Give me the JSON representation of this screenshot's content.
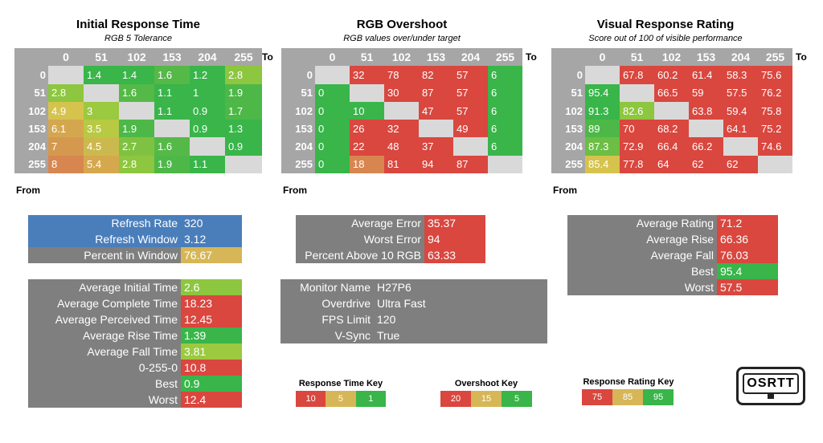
{
  "chart_data": [
    {
      "type": "table",
      "title": "Initial Response Time",
      "subtitle": "RGB 5 Tolerance",
      "col_axis_label": "To",
      "row_axis_label": "From",
      "columns": [
        "0",
        "51",
        "102",
        "153",
        "204",
        "255"
      ],
      "rows": [
        "0",
        "51",
        "102",
        "153",
        "204",
        "255"
      ],
      "values": [
        [
          "",
          "1.4",
          "1.4",
          "1.6",
          "1.2",
          "2.8"
        ],
        [
          "2.8",
          "",
          "1.6",
          "1.1",
          "1",
          "1.9"
        ],
        [
          "4.9",
          "3",
          "",
          "1.1",
          "0.9",
          "1.7"
        ],
        [
          "6.1",
          "3.5",
          "1.9",
          "",
          "0.9",
          "1.3"
        ],
        [
          "7",
          "4.5",
          "2.7",
          "1.6",
          "",
          "0.9"
        ],
        [
          "8",
          "5.4",
          "2.8",
          "1.9",
          "1.1",
          ""
        ]
      ],
      "colors": [
        [
          "",
          "#39b54a",
          "#39b54a",
          "#55b947",
          "#39b54a",
          "#8dc63f"
        ],
        [
          "#8dc63f",
          "",
          "#55b947",
          "#39b54a",
          "#39b54a",
          "#4db848"
        ],
        [
          "#d6c34d",
          "#9bc93f",
          "",
          "#39b54a",
          "#39b54a",
          "#4db848"
        ],
        [
          "#d4a74f",
          "#b8c944",
          "#4db848",
          "",
          "#39b54a",
          "#39b54a"
        ],
        [
          "#d4994f",
          "#ccb94e",
          "#7fc241",
          "#55b947",
          "",
          "#39b54a"
        ],
        [
          "#d88650",
          "#d6a84e",
          "#8dc63f",
          "#4db848",
          "#39b54a",
          ""
        ]
      ]
    },
    {
      "type": "table",
      "title": "RGB Overshoot",
      "subtitle": "RGB values over/under target",
      "col_axis_label": "To",
      "row_axis_label": "From",
      "columns": [
        "0",
        "51",
        "102",
        "153",
        "204",
        "255"
      ],
      "rows": [
        "0",
        "51",
        "102",
        "153",
        "204",
        "255"
      ],
      "values": [
        [
          "",
          "32",
          "78",
          "82",
          "57",
          "6"
        ],
        [
          "0",
          "",
          "30",
          "87",
          "57",
          "6"
        ],
        [
          "0",
          "10",
          "",
          "47",
          "57",
          "6"
        ],
        [
          "0",
          "26",
          "32",
          "",
          "49",
          "6"
        ],
        [
          "0",
          "22",
          "48",
          "37",
          "",
          "6"
        ],
        [
          "0",
          "18",
          "81",
          "94",
          "87",
          ""
        ]
      ],
      "colors": [
        [
          "",
          "#d9473f",
          "#d9473f",
          "#d9473f",
          "#d9473f",
          "#39b54a"
        ],
        [
          "#39b54a",
          "",
          "#d9473f",
          "#d9473f",
          "#d9473f",
          "#39b54a"
        ],
        [
          "#39b54a",
          "#39b54a",
          "",
          "#d9473f",
          "#d9473f",
          "#39b54a"
        ],
        [
          "#39b54a",
          "#d9473f",
          "#d9473f",
          "",
          "#d9473f",
          "#39b54a"
        ],
        [
          "#39b54a",
          "#d9473f",
          "#d9473f",
          "#d9473f",
          "",
          "#39b54a"
        ],
        [
          "#39b54a",
          "#d88650",
          "#d9473f",
          "#d9473f",
          "#d9473f",
          ""
        ]
      ]
    },
    {
      "type": "table",
      "title": "Visual Response Rating",
      "subtitle": "Score out of 100 of visible performance",
      "col_axis_label": "To",
      "row_axis_label": "From",
      "columns": [
        "0",
        "51",
        "102",
        "153",
        "204",
        "255"
      ],
      "rows": [
        "0",
        "51",
        "102",
        "153",
        "204",
        "255"
      ],
      "values": [
        [
          "",
          "67.8",
          "60.2",
          "61.4",
          "58.3",
          "75.6"
        ],
        [
          "95.4",
          "",
          "66.5",
          "59",
          "57.5",
          "76.2"
        ],
        [
          "91.3",
          "82.6",
          "",
          "63.8",
          "59.4",
          "75.8"
        ],
        [
          "89",
          "70",
          "68.2",
          "",
          "64.1",
          "75.2"
        ],
        [
          "87.3",
          "72.9",
          "66.4",
          "66.2",
          "",
          "74.6"
        ],
        [
          "85.4",
          "77.8",
          "64",
          "62",
          "62",
          ""
        ]
      ],
      "colors": [
        [
          "",
          "#d9473f",
          "#d9473f",
          "#d9473f",
          "#d9473f",
          "#d9473f"
        ],
        [
          "#39b54a",
          "",
          "#d9473f",
          "#d9473f",
          "#d9473f",
          "#d9473f"
        ],
        [
          "#39b54a",
          "#8dc63f",
          "",
          "#d9473f",
          "#d9473f",
          "#d9473f"
        ],
        [
          "#4db848",
          "#d9473f",
          "#d9473f",
          "",
          "#d9473f",
          "#d9473f"
        ],
        [
          "#6cbe45",
          "#d9473f",
          "#d9473f",
          "#d9473f",
          "",
          "#d9473f"
        ],
        [
          "#d6c34d",
          "#d9473f",
          "#d9473f",
          "#d9473f",
          "#d9473f",
          ""
        ]
      ]
    }
  ],
  "colors": {
    "header_grey": "#a6a6a6",
    "diag_grey": "#d9d9d9",
    "panel_grey": "#7f7f7f",
    "panel_blue": "#4a7ebb",
    "green": "#39b54a",
    "yellow": "#d6b656",
    "red": "#d9473f",
    "lightgreen": "#8dc63f"
  },
  "refresh": [
    {
      "label": "Refresh Rate",
      "value": "320",
      "bg": "#4a7ebb",
      "vbg": "#4a7ebb"
    },
    {
      "label": "Refresh Window",
      "value": "3.12",
      "bg": "#4a7ebb",
      "vbg": "#4a7ebb"
    },
    {
      "label": "Percent in Window",
      "value": "76.67",
      "bg": "#7f7f7f",
      "vbg": "#d6b656"
    }
  ],
  "response_stats": [
    {
      "label": "Average Initial Time",
      "value": "2.6",
      "vbg": "#8dc63f"
    },
    {
      "label": "Average Complete Time",
      "value": "18.23",
      "vbg": "#d9473f"
    },
    {
      "label": "Average Perceived Time",
      "value": "12.45",
      "vbg": "#d9473f"
    },
    {
      "label": "Average Rise Time",
      "value": "1.39",
      "vbg": "#39b54a"
    },
    {
      "label": "Average Fall Time",
      "value": "3.81",
      "vbg": "#9bc93f"
    },
    {
      "label": "0-255-0",
      "value": "10.8",
      "vbg": "#d9473f"
    },
    {
      "label": "Best",
      "value": "0.9",
      "vbg": "#39b54a"
    },
    {
      "label": "Worst",
      "value": "12.4",
      "vbg": "#d9473f"
    }
  ],
  "overshoot_stats": [
    {
      "label": "Average Error",
      "value": "35.37",
      "vbg": "#d9473f"
    },
    {
      "label": "Worst Error",
      "value": "94",
      "vbg": "#d9473f"
    },
    {
      "label": "Percent Above 10 RGB",
      "value": "63.33",
      "vbg": "#d9473f"
    }
  ],
  "monitor_info": [
    {
      "label": "Monitor Name",
      "value": "H27P6"
    },
    {
      "label": "Overdrive",
      "value": "Ultra Fast"
    },
    {
      "label": "FPS Limit",
      "value": "120"
    },
    {
      "label": "V-Sync",
      "value": "True"
    }
  ],
  "rating_stats": [
    {
      "label": "Average Rating",
      "value": "71.2",
      "vbg": "#d9473f"
    },
    {
      "label": "Average Rise",
      "value": "66.36",
      "vbg": "#d9473f"
    },
    {
      "label": "Average Fall",
      "value": "76.03",
      "vbg": "#d9473f"
    },
    {
      "label": "Best",
      "value": "95.4",
      "vbg": "#39b54a"
    },
    {
      "label": "Worst",
      "value": "57.5",
      "vbg": "#d9473f"
    }
  ],
  "keys": [
    {
      "title": "Response Time Key",
      "items": [
        {
          "label": "10",
          "color": "#d9473f"
        },
        {
          "label": "5",
          "color": "#d6b656"
        },
        {
          "label": "1",
          "color": "#39b54a"
        }
      ]
    },
    {
      "title": "Overshoot Key",
      "items": [
        {
          "label": "20",
          "color": "#d9473f"
        },
        {
          "label": "15",
          "color": "#d6b656"
        },
        {
          "label": "5",
          "color": "#39b54a"
        }
      ]
    },
    {
      "title": "Response Rating Key",
      "items": [
        {
          "label": "75",
          "color": "#d9473f"
        },
        {
          "label": "85",
          "color": "#d6b656"
        },
        {
          "label": "95",
          "color": "#39b54a"
        }
      ]
    }
  ],
  "logo": {
    "text": "OSRTT"
  }
}
